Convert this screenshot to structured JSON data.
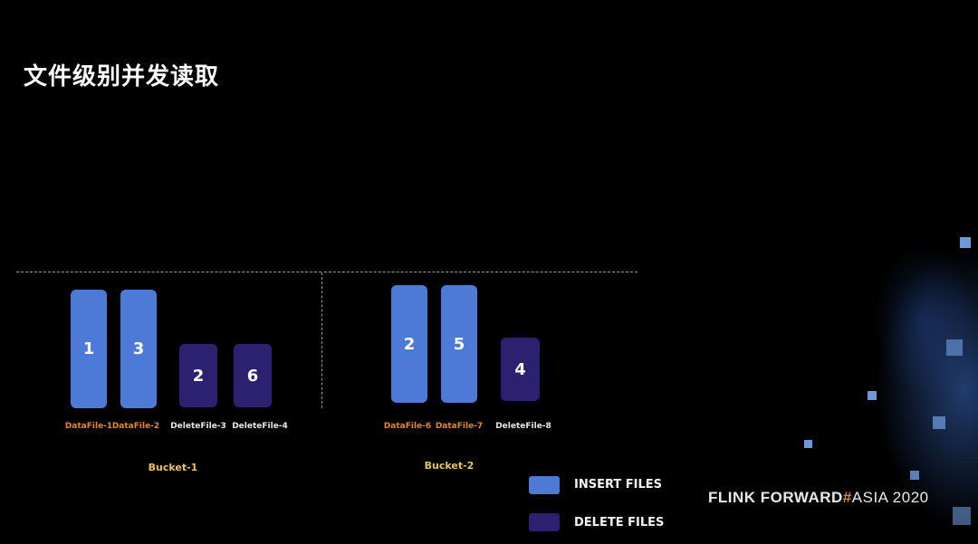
{
  "slide": {
    "title": "文件级别并发读取"
  },
  "bucket1": {
    "label": "Bucket-1",
    "files": [
      {
        "name": "DataFile-1",
        "value": "1",
        "kind": "insert"
      },
      {
        "name": "DataFile-2",
        "value": "3",
        "kind": "insert"
      },
      {
        "name": "DeleteFile-3",
        "value": "2",
        "kind": "delete"
      },
      {
        "name": "DeleteFile-4",
        "value": "6",
        "kind": "delete"
      }
    ]
  },
  "bucket2": {
    "label": "Bucket-2",
    "files": [
      {
        "name": "DataFile-6",
        "value": "2",
        "kind": "insert"
      },
      {
        "name": "DataFile-7",
        "value": "5",
        "kind": "insert"
      },
      {
        "name": "DeleteFile-8",
        "value": "4",
        "kind": "delete"
      }
    ]
  },
  "legend": {
    "insert": {
      "label": "INSERT FILES",
      "color": "#4d7ad6"
    },
    "delete": {
      "label": "DELETE FILES",
      "color": "#2c2170"
    }
  },
  "brand": {
    "part1": "FLINK",
    "part2": "FORWARD",
    "hash": "#",
    "part3": "ASIA 2020"
  }
}
